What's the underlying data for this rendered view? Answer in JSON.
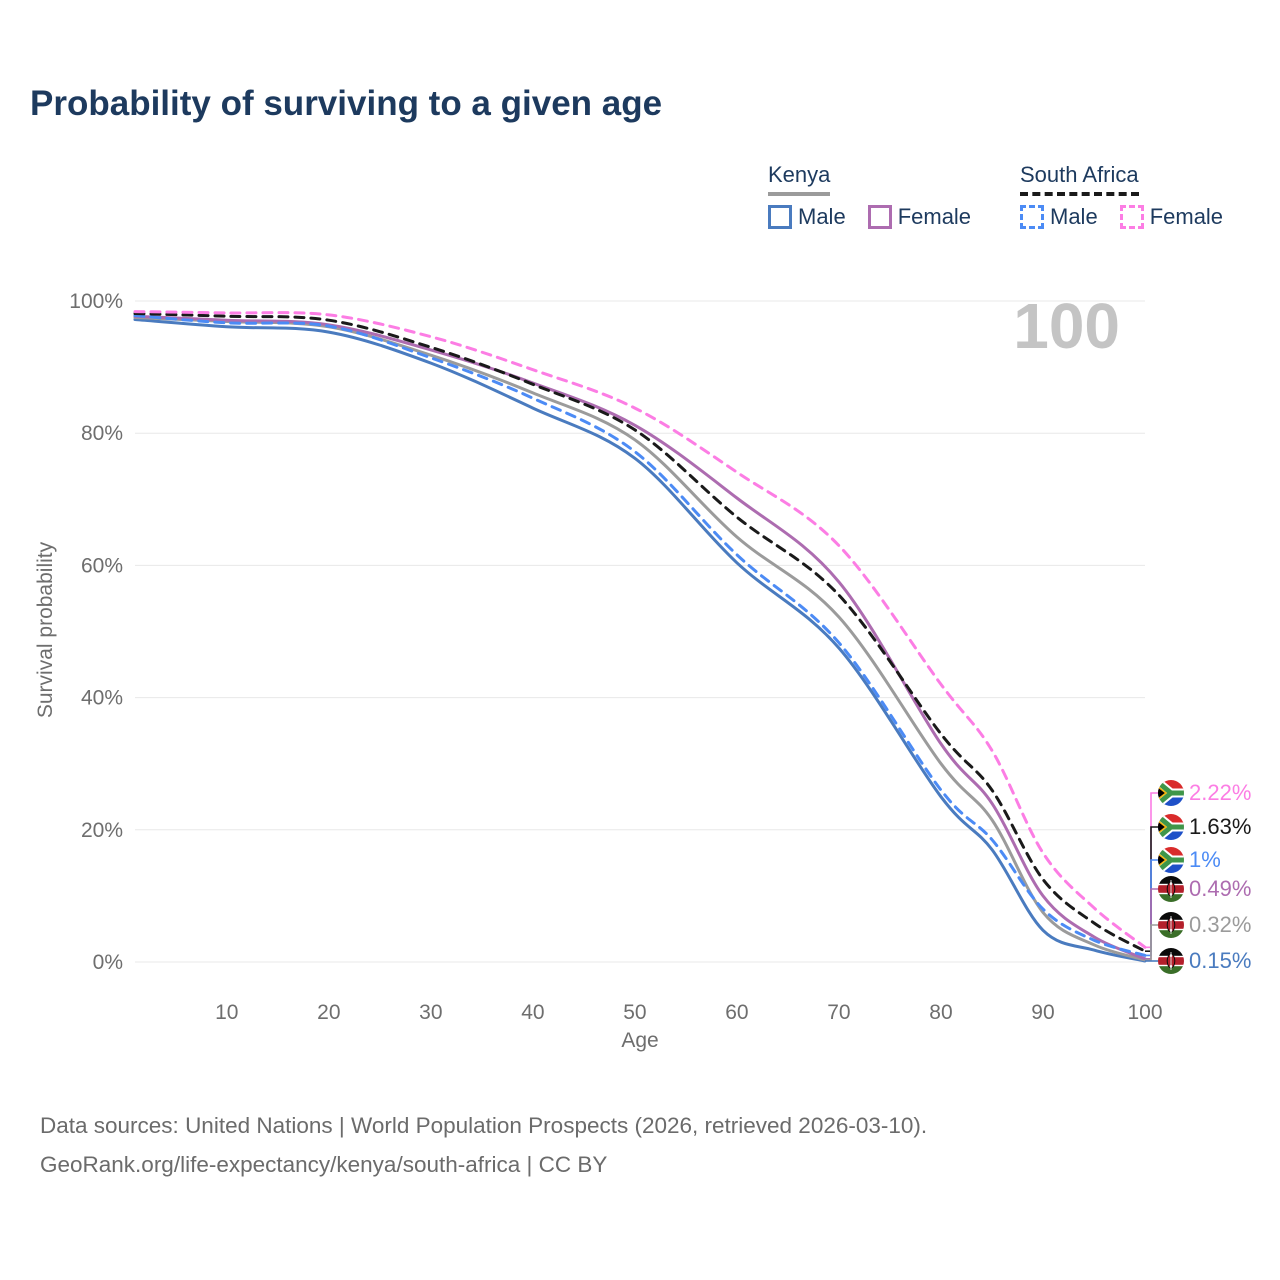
{
  "title": "Probability of surviving to a given age",
  "watermark": "100",
  "legend": {
    "kenya": {
      "title": "Kenya",
      "male_label": "Male",
      "female_label": "Female",
      "line_style": "solid",
      "underline_color": "#9b9b9b"
    },
    "south_africa": {
      "title": "South Africa",
      "male_label": "Male",
      "female_label": "Female",
      "line_style": "dashed",
      "underline_color": "#1a1a1a"
    }
  },
  "y_axis": {
    "title": "Survival probability"
  },
  "x_axis": {
    "title": "Age"
  },
  "end_labels": [
    {
      "flag": "south-africa",
      "label": "2.22%",
      "color": "#fc7de4"
    },
    {
      "flag": "south-africa",
      "label": "1.63%",
      "color": "#1a1a1a"
    },
    {
      "flag": "south-africa",
      "label": "1%",
      "color": "#4c8bf5"
    },
    {
      "flag": "kenya",
      "label": "0.49%",
      "color": "#ad6cb0"
    },
    {
      "flag": "kenya",
      "label": "0.32%",
      "color": "#9b9b9b"
    },
    {
      "flag": "kenya",
      "label": "0.15%",
      "color": "#4a7bbf"
    }
  ],
  "footer": {
    "line1": "Data sources: United Nations | World Population Prospects (2026, retrieved 2026-03-10).",
    "line2": "GeoRank.org/life-expectancy/kenya/south-africa | CC BY"
  },
  "chart_data": {
    "type": "line",
    "title": "Probability of surviving to a given age",
    "xlabel": "Age",
    "ylabel": "Survival probability",
    "xlim": [
      1,
      100
    ],
    "ylim": [
      0,
      100
    ],
    "grid": "horizontal",
    "legend_position": "top-right",
    "x": [
      1,
      10,
      20,
      30,
      40,
      50,
      60,
      70,
      80,
      85,
      90,
      95,
      100
    ],
    "x_ticks": [
      {
        "value": 10,
        "label": "10"
      },
      {
        "value": 20,
        "label": "20"
      },
      {
        "value": 30,
        "label": "30"
      },
      {
        "value": 40,
        "label": "40"
      },
      {
        "value": 50,
        "label": "50"
      },
      {
        "value": 60,
        "label": "60"
      },
      {
        "value": 70,
        "label": "70"
      },
      {
        "value": 80,
        "label": "80"
      },
      {
        "value": 90,
        "label": "90"
      },
      {
        "value": 100,
        "label": "100"
      }
    ],
    "y_ticks": [
      {
        "value": 0,
        "label": "0%"
      },
      {
        "value": 20,
        "label": "20%"
      },
      {
        "value": 40,
        "label": "40%"
      },
      {
        "value": 60,
        "label": "60%"
      },
      {
        "value": 80,
        "label": "80%"
      },
      {
        "value": 100,
        "label": "100%"
      }
    ],
    "series": [
      {
        "id": "south-africa-female",
        "name": "South Africa Female",
        "country": "South Africa",
        "sex": "Female",
        "style": "dashed",
        "color": "#fc7de4",
        "end_label": "2.22%",
        "values": [
          98.4,
          98.2,
          97.9,
          94.6,
          89.6,
          83.8,
          74.1,
          63.0,
          42.0,
          32.0,
          16.5,
          8.2,
          2.22
        ]
      },
      {
        "id": "south-africa-both",
        "name": "South Africa Both sexes",
        "country": "South Africa",
        "sex": "Both",
        "style": "dashed",
        "color": "#1a1a1a",
        "end_label": "1.63%",
        "values": [
          98.1,
          97.7,
          97.1,
          93.0,
          87.4,
          80.5,
          67.3,
          55.5,
          34.5,
          26.0,
          12.5,
          5.9,
          1.63
        ]
      },
      {
        "id": "south-africa-male",
        "name": "South Africa Male",
        "country": "South Africa",
        "sex": "Male",
        "style": "dashed",
        "color": "#4c8bf5",
        "end_label": "1%",
        "values": [
          97.8,
          96.7,
          96.2,
          91.4,
          85.3,
          77.2,
          61.6,
          48.3,
          26.0,
          18.5,
          8.0,
          3.3,
          1.0
        ]
      },
      {
        "id": "kenya-female",
        "name": "Kenya Female",
        "country": "Kenya",
        "sex": "Female",
        "style": "solid",
        "color": "#ad6cb0",
        "end_label": "0.49%",
        "values": [
          97.7,
          97.1,
          96.4,
          92.6,
          87.6,
          81.2,
          70.2,
          57.5,
          33.0,
          24.0,
          10.0,
          3.8,
          0.49
        ]
      },
      {
        "id": "kenya-both",
        "name": "Kenya Both sexes",
        "country": "Kenya",
        "sex": "Both",
        "style": "solid",
        "color": "#9b9b9b",
        "end_label": "0.32%",
        "values": [
          97.5,
          96.9,
          96.1,
          91.8,
          86.1,
          79.0,
          64.3,
          52.2,
          30.0,
          21.5,
          7.5,
          2.6,
          0.32
        ]
      },
      {
        "id": "kenya-male",
        "name": "Kenya Male",
        "country": "Kenya",
        "sex": "Male",
        "style": "solid",
        "color": "#4a7bbf",
        "end_label": "0.15%",
        "values": [
          97.2,
          96.1,
          95.3,
          90.6,
          83.8,
          76.2,
          60.4,
          47.5,
          25.0,
          17.0,
          4.8,
          1.8,
          0.15
        ]
      }
    ]
  }
}
